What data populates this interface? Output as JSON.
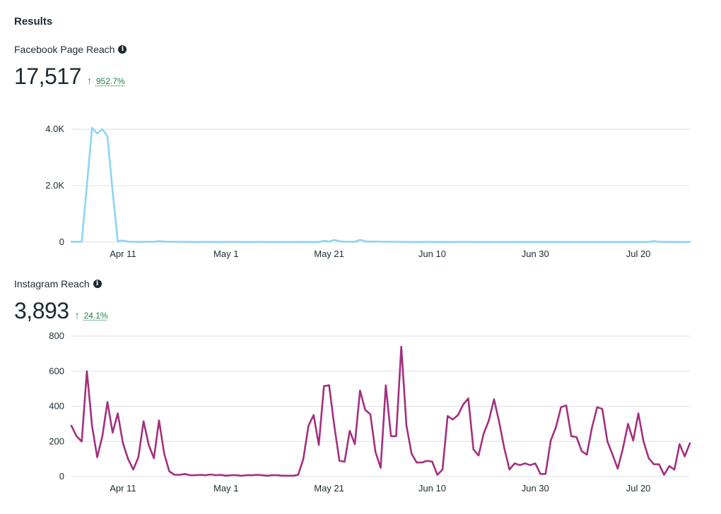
{
  "header": {
    "title": "Results"
  },
  "facebook": {
    "label": "Facebook Page Reach",
    "value": "17,517",
    "delta": "952.7%",
    "color": "#8dd4f5"
  },
  "instagram": {
    "label": "Instagram Reach",
    "value": "3,893",
    "delta": "24.1%",
    "color": "#a3307e"
  },
  "chart_data": [
    {
      "type": "line",
      "title": "Facebook Page Reach",
      "x_start": "Apr 1",
      "x_ticks": [
        {
          "day": 10,
          "label": "Apr 11"
        },
        {
          "day": 30,
          "label": "May 1"
        },
        {
          "day": 50,
          "label": "May 21"
        },
        {
          "day": 70,
          "label": "Jun 10"
        },
        {
          "day": 90,
          "label": "Jun 30"
        },
        {
          "day": 110,
          "label": "Jul 20"
        }
      ],
      "y_ticks": [
        {
          "value": 0,
          "label": "0"
        },
        {
          "value": 2000,
          "label": "2.0K"
        },
        {
          "value": 4000,
          "label": "4.0K"
        }
      ],
      "ylim": [
        0,
        4000
      ],
      "xlim": [
        0,
        120
      ],
      "series": [
        {
          "name": "Facebook Page Reach",
          "values": [
            20,
            10,
            20,
            2000,
            4050,
            3850,
            4000,
            3750,
            1800,
            30,
            60,
            20,
            15,
            10,
            10,
            15,
            12,
            40,
            20,
            15,
            15,
            10,
            10,
            10,
            8,
            10,
            10,
            10,
            8,
            8,
            10,
            10,
            10,
            8,
            8,
            8,
            10,
            12,
            10,
            8,
            8,
            8,
            8,
            8,
            10,
            8,
            8,
            8,
            10,
            50,
            20,
            80,
            30,
            20,
            15,
            15,
            80,
            30,
            20,
            25,
            20,
            15,
            15,
            12,
            10,
            10,
            8,
            8,
            8,
            10,
            10,
            8,
            10,
            8,
            10,
            10,
            10,
            10,
            8,
            8,
            8,
            8,
            8,
            8,
            8,
            8,
            8,
            8,
            8,
            8,
            8,
            8,
            8,
            8,
            8,
            8,
            8,
            8,
            8,
            8,
            8,
            8,
            8,
            8,
            8,
            8,
            8,
            8,
            8,
            8,
            8,
            8,
            8,
            40,
            10,
            12,
            8,
            10,
            8,
            8,
            8
          ]
        }
      ]
    },
    {
      "type": "line",
      "title": "Instagram Reach",
      "x_start": "Apr 1",
      "x_ticks": [
        {
          "day": 10,
          "label": "Apr 11"
        },
        {
          "day": 30,
          "label": "May 1"
        },
        {
          "day": 50,
          "label": "May 21"
        },
        {
          "day": 70,
          "label": "Jun 10"
        },
        {
          "day": 90,
          "label": "Jun 30"
        },
        {
          "day": 110,
          "label": "Jul 20"
        }
      ],
      "y_ticks": [
        {
          "value": 0,
          "label": "0"
        },
        {
          "value": 200,
          "label": "200"
        },
        {
          "value": 400,
          "label": "400"
        },
        {
          "value": 600,
          "label": "600"
        },
        {
          "value": 800,
          "label": "800"
        }
      ],
      "ylim": [
        0,
        800
      ],
      "xlim": [
        0,
        120
      ],
      "series": [
        {
          "name": "Instagram Reach",
          "values": [
            290,
            230,
            200,
            600,
            290,
            110,
            230,
            425,
            250,
            360,
            190,
            100,
            40,
            110,
            315,
            180,
            105,
            320,
            130,
            30,
            10,
            10,
            15,
            8,
            8,
            10,
            8,
            12,
            8,
            10,
            5,
            8,
            8,
            5,
            8,
            8,
            10,
            8,
            5,
            8,
            8,
            5,
            5,
            5,
            10,
            100,
            290,
            350,
            180,
            515,
            520,
            290,
            90,
            85,
            260,
            185,
            490,
            380,
            355,
            140,
            50,
            520,
            230,
            230,
            740,
            290,
            130,
            80,
            80,
            90,
            85,
            10,
            40,
            345,
            325,
            350,
            410,
            445,
            155,
            120,
            245,
            320,
            440,
            310,
            160,
            40,
            75,
            65,
            75,
            65,
            75,
            15,
            15,
            205,
            280,
            395,
            405,
            230,
            225,
            145,
            125,
            280,
            395,
            385,
            200,
            125,
            45,
            160,
            300,
            205,
            360,
            200,
            105,
            70,
            70,
            10,
            60,
            40,
            185,
            115,
            190
          ]
        }
      ]
    }
  ]
}
